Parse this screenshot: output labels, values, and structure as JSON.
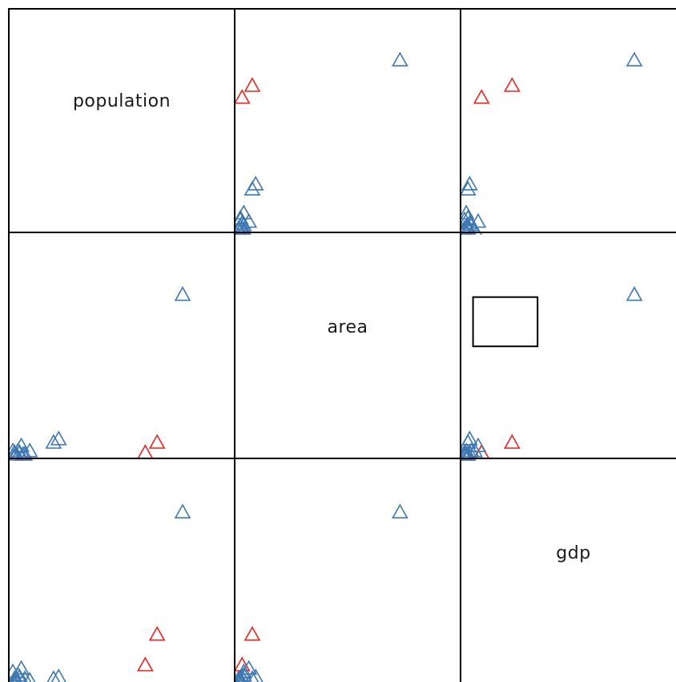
{
  "chart_data": {
    "type": "scatter",
    "kind": "scatter-plot-matrix",
    "variables": [
      "population",
      "area",
      "gdp"
    ],
    "marker": "open-triangle",
    "group_colors": {
      "selected": "#e8231f",
      "unselected": "#3e78b2"
    },
    "grid": false,
    "legend": "none",
    "selection_box": {
      "panel": "area-vs-gdp",
      "x_range": [
        0.05,
        0.43
      ],
      "y_range": [
        0.65,
        0.94
      ]
    },
    "observations": [
      {
        "population": 1.0,
        "area": 0.95,
        "gdp": 1.0,
        "group": "unselected"
      },
      {
        "population": 0.85,
        "area": 0.08,
        "gdp": 0.28,
        "group": "selected"
      },
      {
        "population": 0.78,
        "area": 0.02,
        "gdp": 0.1,
        "group": "selected"
      },
      {
        "population": 0.27,
        "area": 0.1,
        "gdp": 0.03,
        "group": "unselected"
      },
      {
        "population": 0.24,
        "area": 0.08,
        "gdp": 0.02,
        "group": "unselected"
      },
      {
        "population": 0.05,
        "area": 0.06,
        "gdp": 0.08,
        "group": "unselected"
      },
      {
        "population": 0.03,
        "area": 0.03,
        "gdp": 0.04,
        "group": "unselected"
      },
      {
        "population": 0.1,
        "area": 0.03,
        "gdp": 0.01,
        "group": "unselected"
      },
      {
        "population": 0.01,
        "area": 0.02,
        "gdp": 0.0,
        "group": "unselected"
      },
      {
        "population": 0.07,
        "area": 0.01,
        "gdp": 0.02,
        "group": "unselected"
      },
      {
        "population": 0.04,
        "area": 0.02,
        "gdp": 0.03,
        "group": "unselected"
      },
      {
        "population": 0.02,
        "area": 0.01,
        "gdp": 0.01,
        "group": "unselected"
      },
      {
        "population": 0.0,
        "area": 0.0,
        "gdp": 0.0,
        "group": "unselected"
      },
      {
        "population": 0.06,
        "area": 0.01,
        "gdp": 0.0,
        "group": "unselected"
      },
      {
        "population": 0.0,
        "area": 0.03,
        "gdp": 0.06,
        "group": "unselected"
      },
      {
        "population": 0.01,
        "area": 0.0,
        "gdp": 0.02,
        "group": "unselected"
      }
    ]
  }
}
